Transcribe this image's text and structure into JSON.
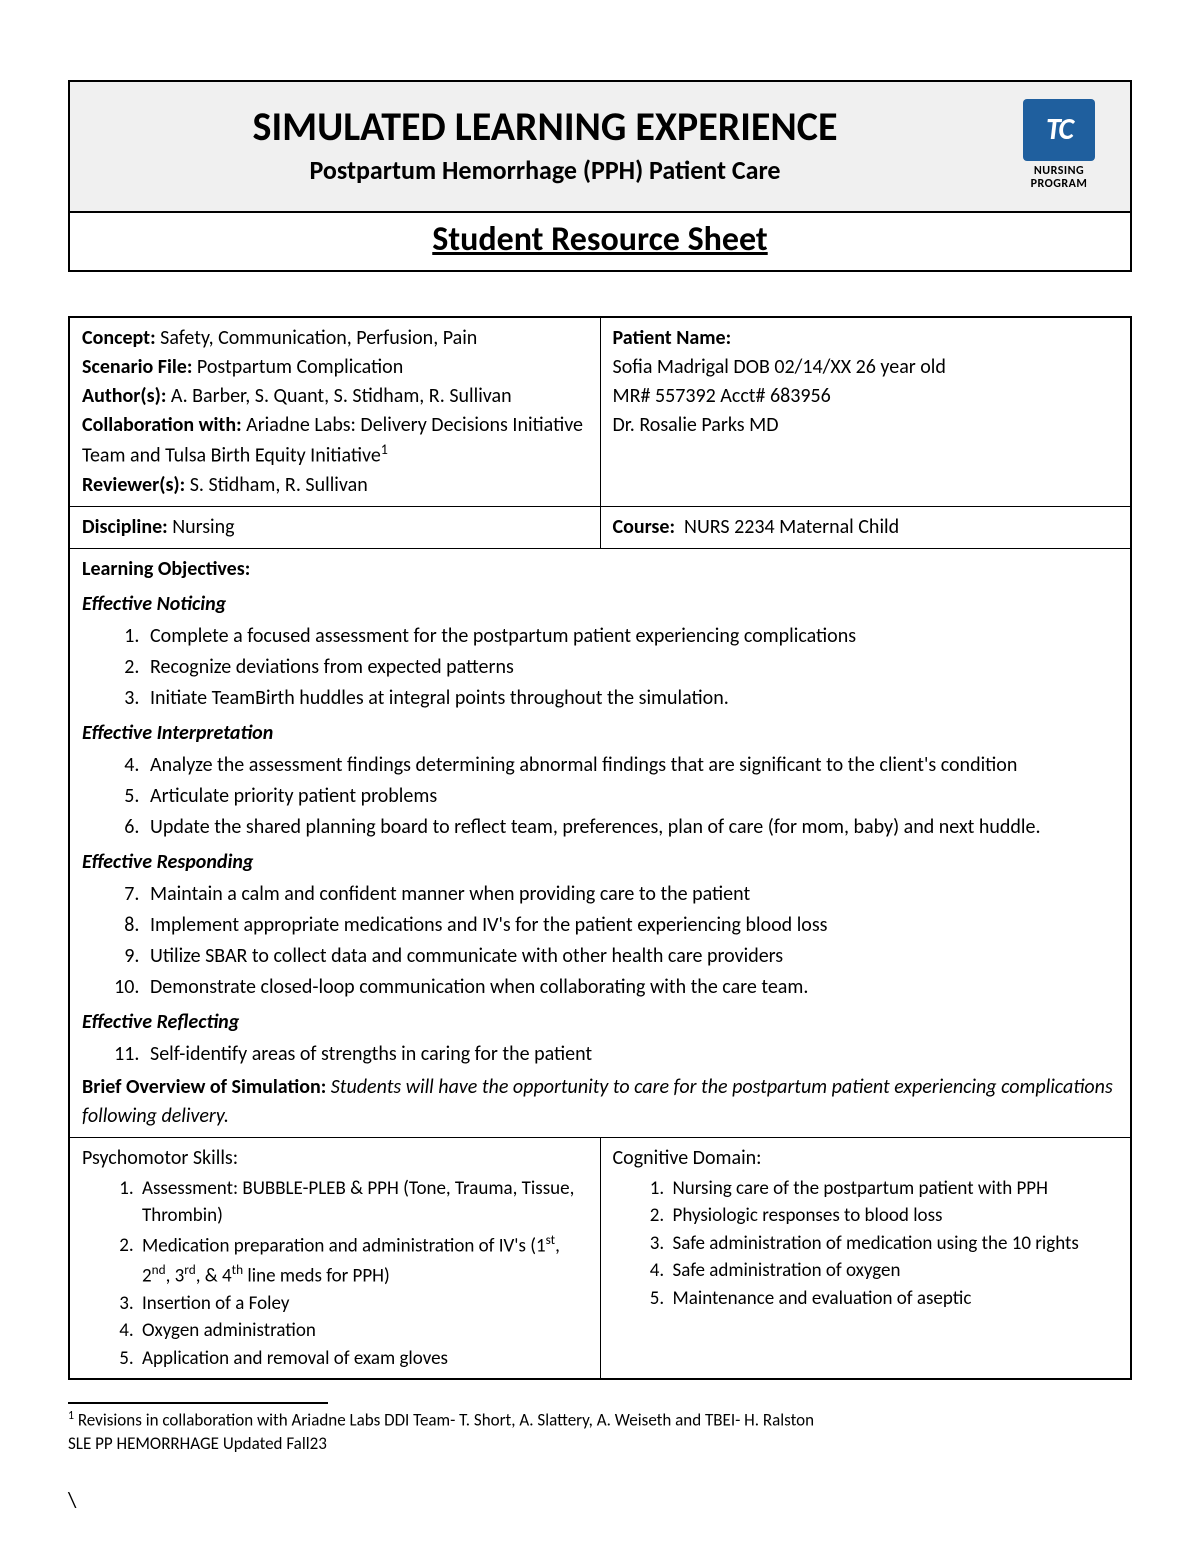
{
  "colors": {
    "page_bg": "#ffffff",
    "header_bg": "#f0f0f0",
    "border": "#000000",
    "text": "#000000",
    "logo_bg": "#1f5f9e",
    "logo_fg": "#ffffff"
  },
  "header": {
    "title": "SIMULATED LEARNING EXPERIENCE",
    "subtitle": "Postpartum Hemorrhage (PPH) Patient Care",
    "section_title": "Student Resource Sheet",
    "logo_letters": "TC",
    "logo_line1": "NURSING",
    "logo_line2": "PROGRAM"
  },
  "info_left": {
    "concept_label": "Concept:",
    "concept": "Safety, Communication, Perfusion, Pain",
    "scenario_label": "Scenario File:",
    "scenario": "Postpartum Complication",
    "authors_label": "Author(s):",
    "authors": "A. Barber, S. Quant, S. Stidham, R. Sullivan",
    "collab_label": "Collaboration with:",
    "collab": "Ariadne Labs: Delivery Decisions Initiative Team and Tulsa Birth Equity Initiative",
    "collab_sup": "1",
    "reviewers_label": "Reviewer(s):",
    "reviewers": "S. Stidham, R. Sullivan"
  },
  "info_right": {
    "patient_label": "Patient Name:",
    "patient_line1": "Sofia Madrigal DOB 02/14/XX 26 year old",
    "patient_line2": "MR# 557392 Acct# 683956",
    "patient_line3": "Dr. Rosalie Parks MD"
  },
  "row2": {
    "discipline_label": "Discipline:",
    "discipline": "Nursing",
    "course_label": "Course:",
    "course": "NURS 2234 Maternal Child"
  },
  "objectives": {
    "title": "Learning Objectives:",
    "groups": [
      {
        "heading": "Effective Noticing",
        "start": 1,
        "items": [
          "Complete a focused assessment for the postpartum patient experiencing complications",
          "Recognize deviations from expected patterns",
          "Initiate TeamBirth huddles at integral points throughout the simulation."
        ]
      },
      {
        "heading": "Effective Interpretation",
        "start": 4,
        "items": [
          "Analyze the assessment findings determining abnormal findings that are significant to the client's condition",
          "Articulate priority patient problems",
          "Update the shared planning board to reflect team, preferences, plan of care (for mom, baby) and next huddle."
        ]
      },
      {
        "heading": "Effective Responding",
        "start": 7,
        "items": [
          "Maintain a calm and confident manner when providing care to the patient",
          "Implement appropriate medications and IV's for the patient experiencing blood loss",
          "Utilize SBAR to collect data and communicate with other health care providers",
          "Demonstrate closed-loop communication when collaborating with the care team."
        ]
      },
      {
        "heading": "Effective Reflecting",
        "start": 11,
        "items": [
          "Self-identify areas of strengths in caring for the patient"
        ]
      }
    ],
    "overview_label": "Brief Overview of Simulation:",
    "overview": "Students will have the opportunity to care for the postpartum patient experiencing complications following delivery."
  },
  "psychomotor": {
    "title": "Psychomotor Skills:",
    "items": [
      "Assessment: BUBBLE-PLEB & PPH (Tone, Trauma, Tissue, Thrombin)",
      "Medication preparation and administration of IV's (1st, 2nd, 3rd, & 4th line meds for PPH)",
      "Insertion of a Foley",
      "Oxygen administration",
      "Application and removal of exam gloves"
    ]
  },
  "cognitive": {
    "title": "Cognitive Domain:",
    "items": [
      "Nursing care of the postpartum patient with PPH",
      "Physiologic responses to blood loss",
      "Safe administration of medication using the 10 rights",
      "Safe administration of oxygen",
      "Maintenance and evaluation of aseptic"
    ]
  },
  "footnote": {
    "sup": "1",
    "text": "Revisions in collaboration with Ariadne Labs DDI Team- T. Short, A. Slattery, A. Weiseth and TBEI- H. Ralston",
    "doc_id": "SLE PP HEMORRHAGE  Updated Fall23"
  },
  "slash": "\\"
}
